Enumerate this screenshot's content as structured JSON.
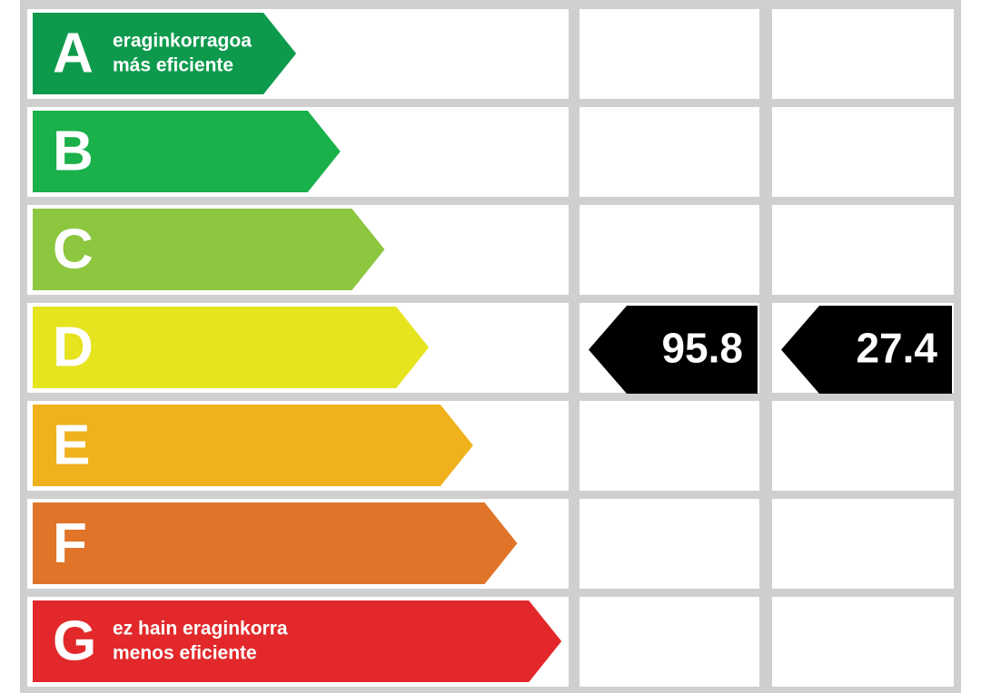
{
  "rows": [
    {
      "letter": "A",
      "line1": "eraginkorragoa",
      "line2": "más eficiente",
      "color": "#0e9a4d"
    },
    {
      "letter": "B",
      "color": "#1ab04a"
    },
    {
      "letter": "C",
      "color": "#8dc63f"
    },
    {
      "letter": "D",
      "color": "#e6e31f",
      "ratings": [
        95.8,
        27.4
      ]
    },
    {
      "letter": "E",
      "color": "#efb21d"
    },
    {
      "letter": "F",
      "color": "#e07428"
    },
    {
      "letter": "G",
      "line1": "ez hain eraginkorra",
      "line2": "menos eficiente",
      "color": "#e2282a"
    }
  ]
}
